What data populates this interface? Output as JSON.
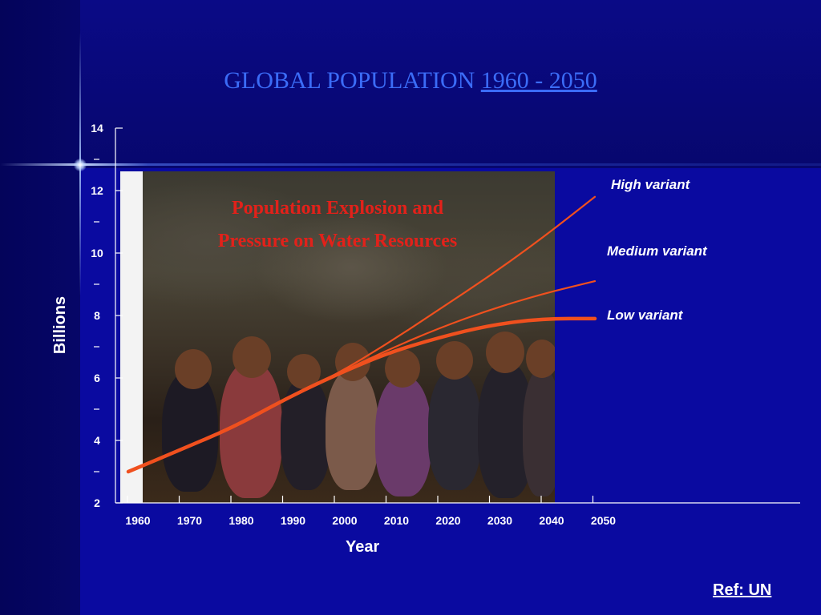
{
  "title": {
    "main": "GLOBAL POPULATION",
    "years": "1960 - 2050"
  },
  "photo": {
    "caption_line1": "Population Explosion and",
    "caption_line2": "Pressure on Water Resources"
  },
  "reference": "Ref: UN",
  "colors": {
    "background": "#0a0aa0",
    "title": "#3b6cf7",
    "series_lines": "#f0501e",
    "caption": "#e2211a"
  },
  "chart_data": {
    "type": "line",
    "xlabel": "Year",
    "ylabel": "Billions",
    "x": [
      1960,
      1970,
      1980,
      1990,
      2000,
      2010,
      2020,
      2030,
      2040,
      2050
    ],
    "xlim": [
      1960,
      2050
    ],
    "ylim": [
      2,
      14
    ],
    "y_ticks": [
      2,
      4,
      6,
      8,
      10,
      12,
      14
    ],
    "grid": false,
    "series": [
      {
        "name": "High variant",
        "values": [
          3.0,
          3.7,
          4.4,
          5.3,
          6.1,
          7.1,
          8.2,
          9.3,
          10.5,
          11.8
        ]
      },
      {
        "name": "Medium variant",
        "values": [
          3.0,
          3.7,
          4.4,
          5.3,
          6.1,
          6.9,
          7.6,
          8.2,
          8.7,
          9.1
        ]
      },
      {
        "name": "Low variant",
        "values": [
          3.0,
          3.7,
          4.4,
          5.3,
          6.1,
          6.8,
          7.3,
          7.7,
          7.9,
          7.9
        ]
      }
    ]
  }
}
